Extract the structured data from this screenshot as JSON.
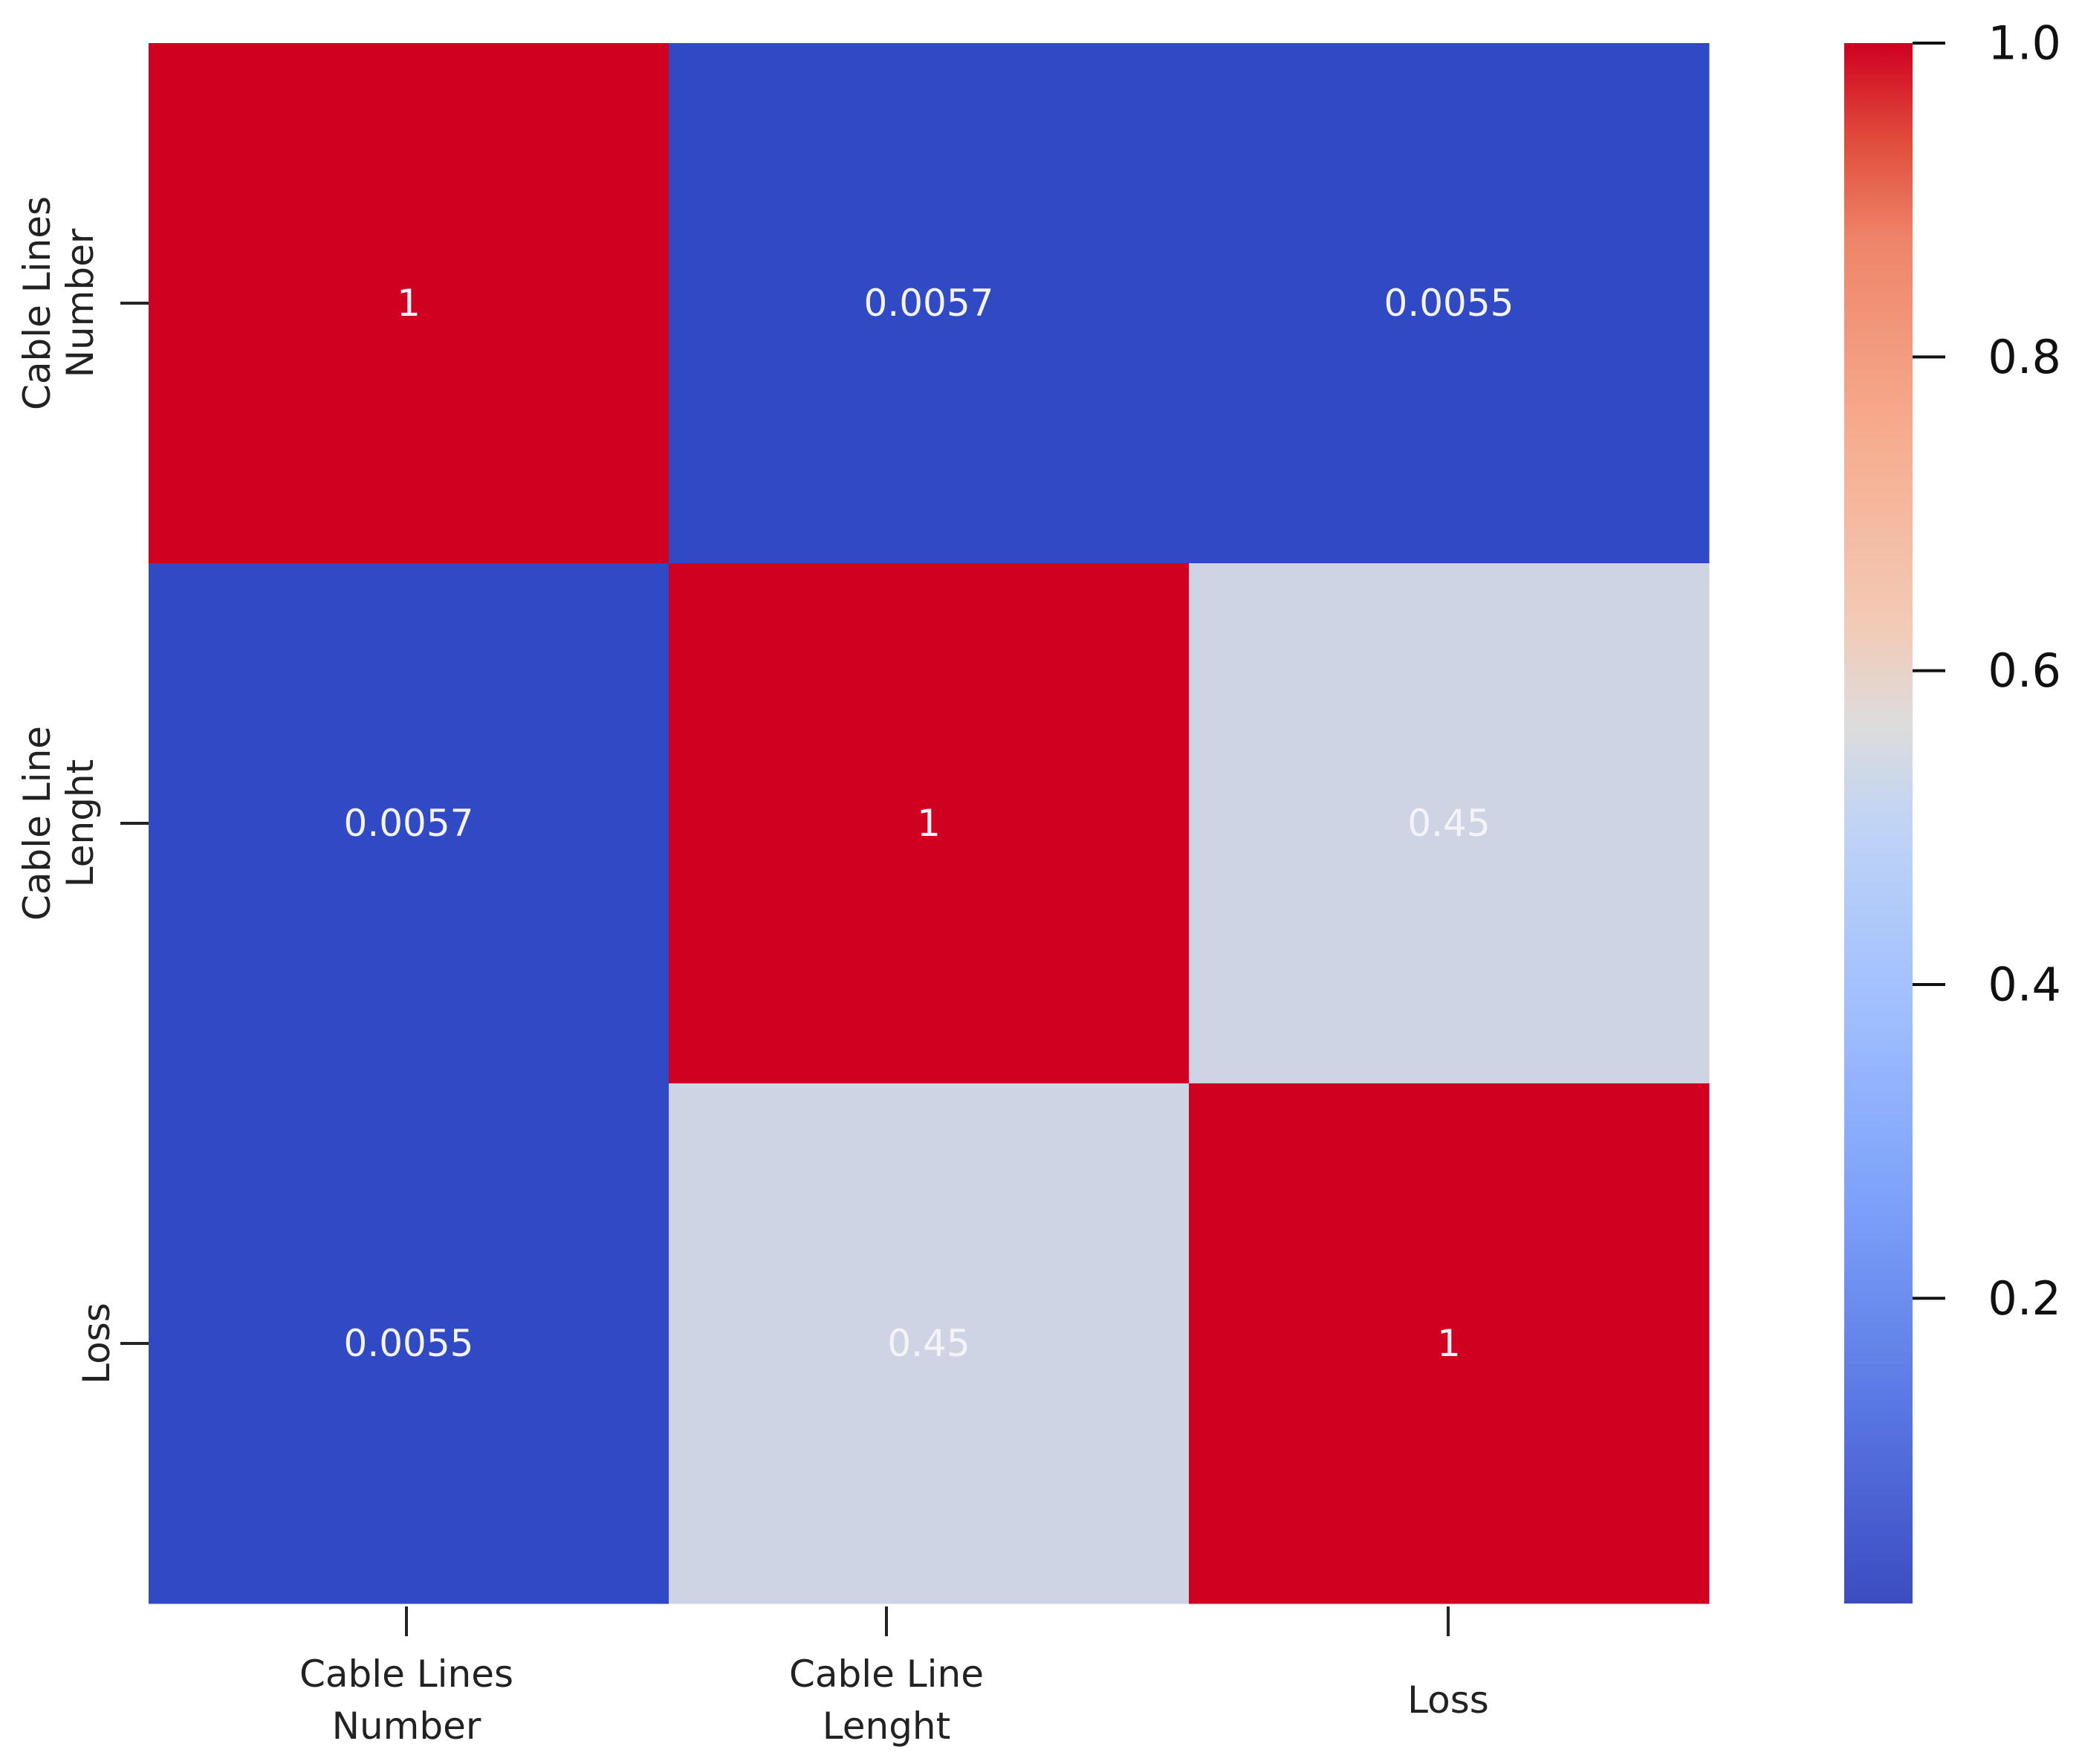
{
  "chart_data": {
    "type": "heatmap",
    "title": "",
    "xlabel": "",
    "ylabel": "",
    "row_labels": [
      [
        "Cable Lines",
        "Number"
      ],
      [
        "Cable Line",
        "Lenght"
      ],
      [
        "Loss"
      ]
    ],
    "col_labels": [
      [
        "Cable Lines",
        "Number"
      ],
      [
        "Cable Line",
        "Lenght"
      ],
      [
        "Loss"
      ]
    ],
    "values": [
      [
        1,
        0.0057,
        0.0055
      ],
      [
        0.0057,
        1,
        0.45
      ],
      [
        0.0055,
        0.45,
        1
      ]
    ],
    "annotations": [
      [
        "1",
        "0.0057",
        "0.0055"
      ],
      [
        "0.0057",
        "1",
        "0.45"
      ],
      [
        "0.0055",
        "0.45",
        "1"
      ]
    ],
    "colormap": "coolwarm",
    "colorbar": {
      "vmin": 0.0055,
      "vmax": 1.0,
      "ticks": [
        0.2,
        0.4,
        0.6,
        0.8,
        1.0
      ],
      "tick_labels": [
        "0.2",
        "0.4",
        "0.6",
        "0.8",
        "1.0"
      ]
    },
    "colors": {
      "low": "#3049c4",
      "mid": "#cfd4e5",
      "high": "#cf0020"
    }
  }
}
